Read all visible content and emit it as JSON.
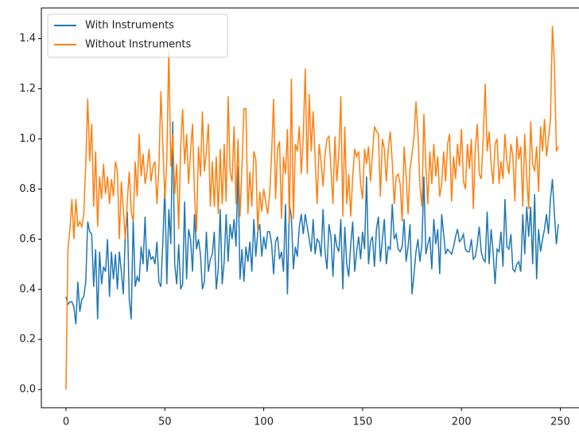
{
  "chart_data": {
    "type": "line",
    "x": [
      0,
      1,
      2,
      3,
      4,
      5,
      6,
      7,
      8,
      9,
      10,
      11,
      12,
      13,
      14,
      15,
      16,
      17,
      18,
      19,
      20,
      21,
      22,
      23,
      24,
      25,
      26,
      27,
      28,
      29,
      30,
      31,
      32,
      33,
      34,
      35,
      36,
      37,
      38,
      39,
      40,
      41,
      42,
      43,
      44,
      45,
      46,
      47,
      48,
      49,
      50,
      51,
      52,
      53,
      54,
      55,
      56,
      57,
      58,
      59,
      60,
      61,
      62,
      63,
      64,
      65,
      66,
      67,
      68,
      69,
      70,
      71,
      72,
      73,
      74,
      75,
      76,
      77,
      78,
      79,
      80,
      81,
      82,
      83,
      84,
      85,
      86,
      87,
      88,
      89,
      90,
      91,
      92,
      93,
      94,
      95,
      96,
      97,
      98,
      99,
      100,
      101,
      102,
      103,
      104,
      105,
      106,
      107,
      108,
      109,
      110,
      111,
      112,
      113,
      114,
      115,
      116,
      117,
      118,
      119,
      120,
      121,
      122,
      123,
      124,
      125,
      126,
      127,
      128,
      129,
      130,
      131,
      132,
      133,
      134,
      135,
      136,
      137,
      138,
      139,
      140,
      141,
      142,
      143,
      144,
      145,
      146,
      147,
      148,
      149,
      150,
      151,
      152,
      153,
      154,
      155,
      156,
      157,
      158,
      159,
      160,
      161,
      162,
      163,
      164,
      165,
      166,
      167,
      168,
      169,
      170,
      171,
      172,
      173,
      174,
      175,
      176,
      177,
      178,
      179,
      180,
      181,
      182,
      183,
      184,
      185,
      186,
      187,
      188,
      189,
      190,
      191,
      192,
      193,
      194,
      195,
      196,
      197,
      198,
      199,
      200,
      201,
      202,
      203,
      204,
      205,
      206,
      207,
      208,
      209,
      210,
      211,
      212,
      213,
      214,
      215,
      216,
      217,
      218,
      219,
      220,
      221,
      222,
      223,
      224,
      225,
      226,
      227,
      228,
      229,
      230,
      231,
      232,
      233,
      234,
      235,
      236,
      237,
      238,
      239,
      240,
      241,
      242,
      243,
      244,
      245,
      246,
      247,
      248,
      249
    ],
    "series": [
      {
        "name": "With Instruments",
        "color": "#1f77b4",
        "values": [
          0.37,
          0.34,
          0.35,
          0.35,
          0.33,
          0.26,
          0.43,
          0.31,
          0.36,
          0.37,
          0.43,
          0.67,
          0.63,
          0.62,
          0.41,
          0.56,
          0.28,
          0.55,
          0.42,
          0.49,
          0.47,
          0.6,
          0.37,
          0.55,
          0.44,
          0.54,
          0.4,
          0.55,
          0.47,
          0.38,
          0.62,
          0.71,
          0.36,
          0.28,
          0.68,
          0.41,
          0.45,
          0.43,
          0.57,
          0.5,
          0.69,
          0.47,
          0.56,
          0.52,
          0.53,
          0.5,
          0.59,
          0.43,
          0.41,
          0.59,
          0.81,
          0.42,
          0.72,
          0.58,
          1.07,
          0.5,
          0.42,
          0.58,
          0.4,
          0.42,
          0.75,
          0.44,
          0.64,
          0.6,
          0.47,
          0.7,
          0.56,
          0.6,
          0.54,
          0.4,
          0.43,
          0.63,
          0.47,
          0.52,
          0.54,
          0.63,
          0.4,
          0.48,
          0.72,
          0.42,
          0.51,
          0.7,
          0.51,
          0.66,
          0.6,
          0.68,
          0.57,
          0.89,
          0.44,
          0.56,
          0.43,
          0.57,
          0.51,
          0.59,
          0.47,
          0.68,
          0.53,
          0.63,
          0.66,
          0.53,
          0.61,
          0.56,
          0.63,
          0.63,
          0.58,
          0.46,
          0.59,
          0.61,
          0.52,
          0.55,
          0.47,
          0.74,
          0.38,
          0.74,
          0.69,
          0.48,
          0.57,
          0.53,
          0.65,
          0.7,
          0.62,
          0.7,
          0.65,
          0.6,
          0.55,
          0.68,
          0.54,
          0.6,
          0.59,
          0.53,
          0.72,
          0.55,
          0.48,
          0.66,
          0.61,
          0.45,
          0.62,
          0.57,
          0.55,
          0.68,
          0.4,
          0.65,
          0.5,
          0.45,
          0.58,
          0.67,
          0.47,
          0.55,
          0.61,
          0.52,
          0.63,
          0.56,
          0.85,
          0.5,
          0.59,
          0.61,
          0.49,
          0.64,
          0.69,
          0.51,
          0.6,
          0.68,
          0.5,
          0.57,
          0.56,
          0.74,
          0.6,
          0.62,
          0.56,
          0.55,
          0.57,
          0.68,
          0.51,
          0.57,
          0.66,
          0.38,
          0.46,
          0.55,
          0.6,
          0.51,
          0.58,
          0.85,
          0.54,
          0.58,
          0.61,
          0.48,
          0.68,
          0.58,
          0.64,
          0.46,
          0.7,
          0.62,
          0.54,
          0.56,
          0.55,
          0.54,
          0.57,
          0.61,
          0.64,
          0.59,
          0.6,
          0.62,
          0.56,
          0.55,
          0.55,
          0.6,
          0.52,
          0.53,
          0.58,
          0.65,
          0.55,
          0.52,
          0.51,
          0.71,
          0.5,
          0.64,
          0.55,
          0.42,
          0.56,
          0.55,
          0.63,
          0.49,
          0.76,
          0.57,
          0.56,
          0.62,
          0.48,
          0.47,
          0.5,
          0.51,
          0.47,
          0.7,
          0.54,
          0.73,
          0.61,
          0.73,
          0.5,
          0.78,
          0.44,
          0.64,
          0.55,
          0.6,
          0.64,
          0.7,
          0.62,
          0.76,
          0.84,
          0.7,
          0.58,
          0.66
        ]
      },
      {
        "name": "Without Instruments",
        "color": "#ff7f0e",
        "values": [
          0.0,
          0.56,
          0.64,
          0.76,
          0.6,
          0.76,
          0.65,
          0.67,
          0.65,
          0.7,
          0.9,
          1.16,
          0.91,
          1.06,
          0.73,
          0.95,
          0.65,
          0.85,
          0.76,
          0.9,
          0.78,
          0.85,
          0.74,
          0.84,
          0.77,
          0.91,
          0.87,
          0.6,
          0.83,
          0.72,
          0.6,
          0.75,
          0.87,
          0.71,
          0.67,
          0.91,
          0.77,
          1.02,
          0.85,
          0.94,
          0.82,
          0.87,
          0.96,
          0.83,
          0.89,
          0.91,
          0.74,
          0.89,
          1.19,
          0.97,
          0.76,
          0.92,
          1.36,
          0.89,
          1.02,
          0.78,
          0.9,
          0.64,
          0.97,
          1.12,
          0.9,
          1.02,
          0.82,
          0.95,
          1.06,
          0.78,
          0.63,
          0.97,
          0.85,
          1.11,
          0.87,
          0.95,
          1.06,
          0.73,
          0.91,
          0.73,
          0.93,
          0.7,
          0.96,
          0.74,
          0.98,
          0.75,
          1.17,
          0.87,
          0.83,
          1.05,
          0.74,
          1.0,
          0.69,
          0.89,
          1.12,
          1.12,
          0.7,
          0.87,
          0.73,
          0.95,
          0.92,
          0.63,
          0.79,
          0.71,
          0.8,
          0.75,
          0.7,
          0.78,
          0.94,
          1.16,
          0.76,
          0.96,
          0.99,
          0.68,
          0.93,
          0.86,
          1.04,
          0.66,
          1.24,
          0.68,
          0.98,
          0.95,
          1.05,
          0.86,
          1.01,
          1.28,
          0.86,
          1.18,
          0.95,
          1.11,
          0.92,
          0.74,
          0.98,
          0.91,
          0.81,
          0.94,
          1.0,
          1.01,
          0.88,
          0.74,
          1.01,
          0.83,
          0.94,
          1.17,
          0.69,
          1.05,
          0.74,
          0.86,
          0.69,
          0.85,
          0.96,
          0.93,
          0.95,
          0.82,
          0.76,
          0.96,
          0.9,
          0.97,
          0.83,
          0.94,
          1.05,
          1.03,
          1.02,
          0.77,
          1.0,
          0.96,
          0.83,
          0.96,
          1.03,
          0.91,
          0.74,
          0.85,
          0.86,
          0.82,
          0.67,
          0.97,
          0.85,
          0.7,
          0.88,
          0.94,
          1.01,
          1.15,
          1.02,
          0.81,
          0.73,
          1.1,
          0.89,
          0.74,
          0.95,
          0.82,
          0.98,
          0.85,
          0.93,
          0.77,
          0.82,
          0.95,
          0.83,
          0.98,
          1.02,
          0.75,
          0.93,
          0.84,
          0.98,
          0.89,
          1.04,
          0.83,
          0.8,
          0.98,
          0.88,
          1.0,
          0.72,
          0.96,
          1.06,
          0.86,
          0.84,
          1.0,
          1.22,
          0.95,
          1.03,
          0.9,
          0.82,
          0.98,
          1.0,
          0.82,
          0.91,
          0.84,
          1.02,
          0.91,
          0.86,
          0.98,
          0.93,
          0.75,
          1.01,
          0.92,
          0.97,
          0.73,
          1.02,
          0.85,
          0.72,
          1.07,
          0.9,
          0.87,
          0.97,
          0.79,
          1.05,
          0.95,
          1.08,
          0.93,
          1.0,
          1.08,
          1.45,
          1.3,
          0.95,
          0.97
        ]
      }
    ],
    "xlim": [
      -12.45,
      261.45
    ],
    "xticks": [
      0,
      50,
      100,
      150,
      200,
      250
    ],
    "ylim": [
      -0.0725,
      1.5225
    ],
    "yticks": [
      {
        "value": 0,
        "label": "0.0"
      },
      0.2,
      0.4,
      0.6,
      0.8,
      {
        "value": 1,
        "label": "1.0"
      },
      1.2,
      1.4
    ],
    "grid": false,
    "legend": "upper left"
  }
}
